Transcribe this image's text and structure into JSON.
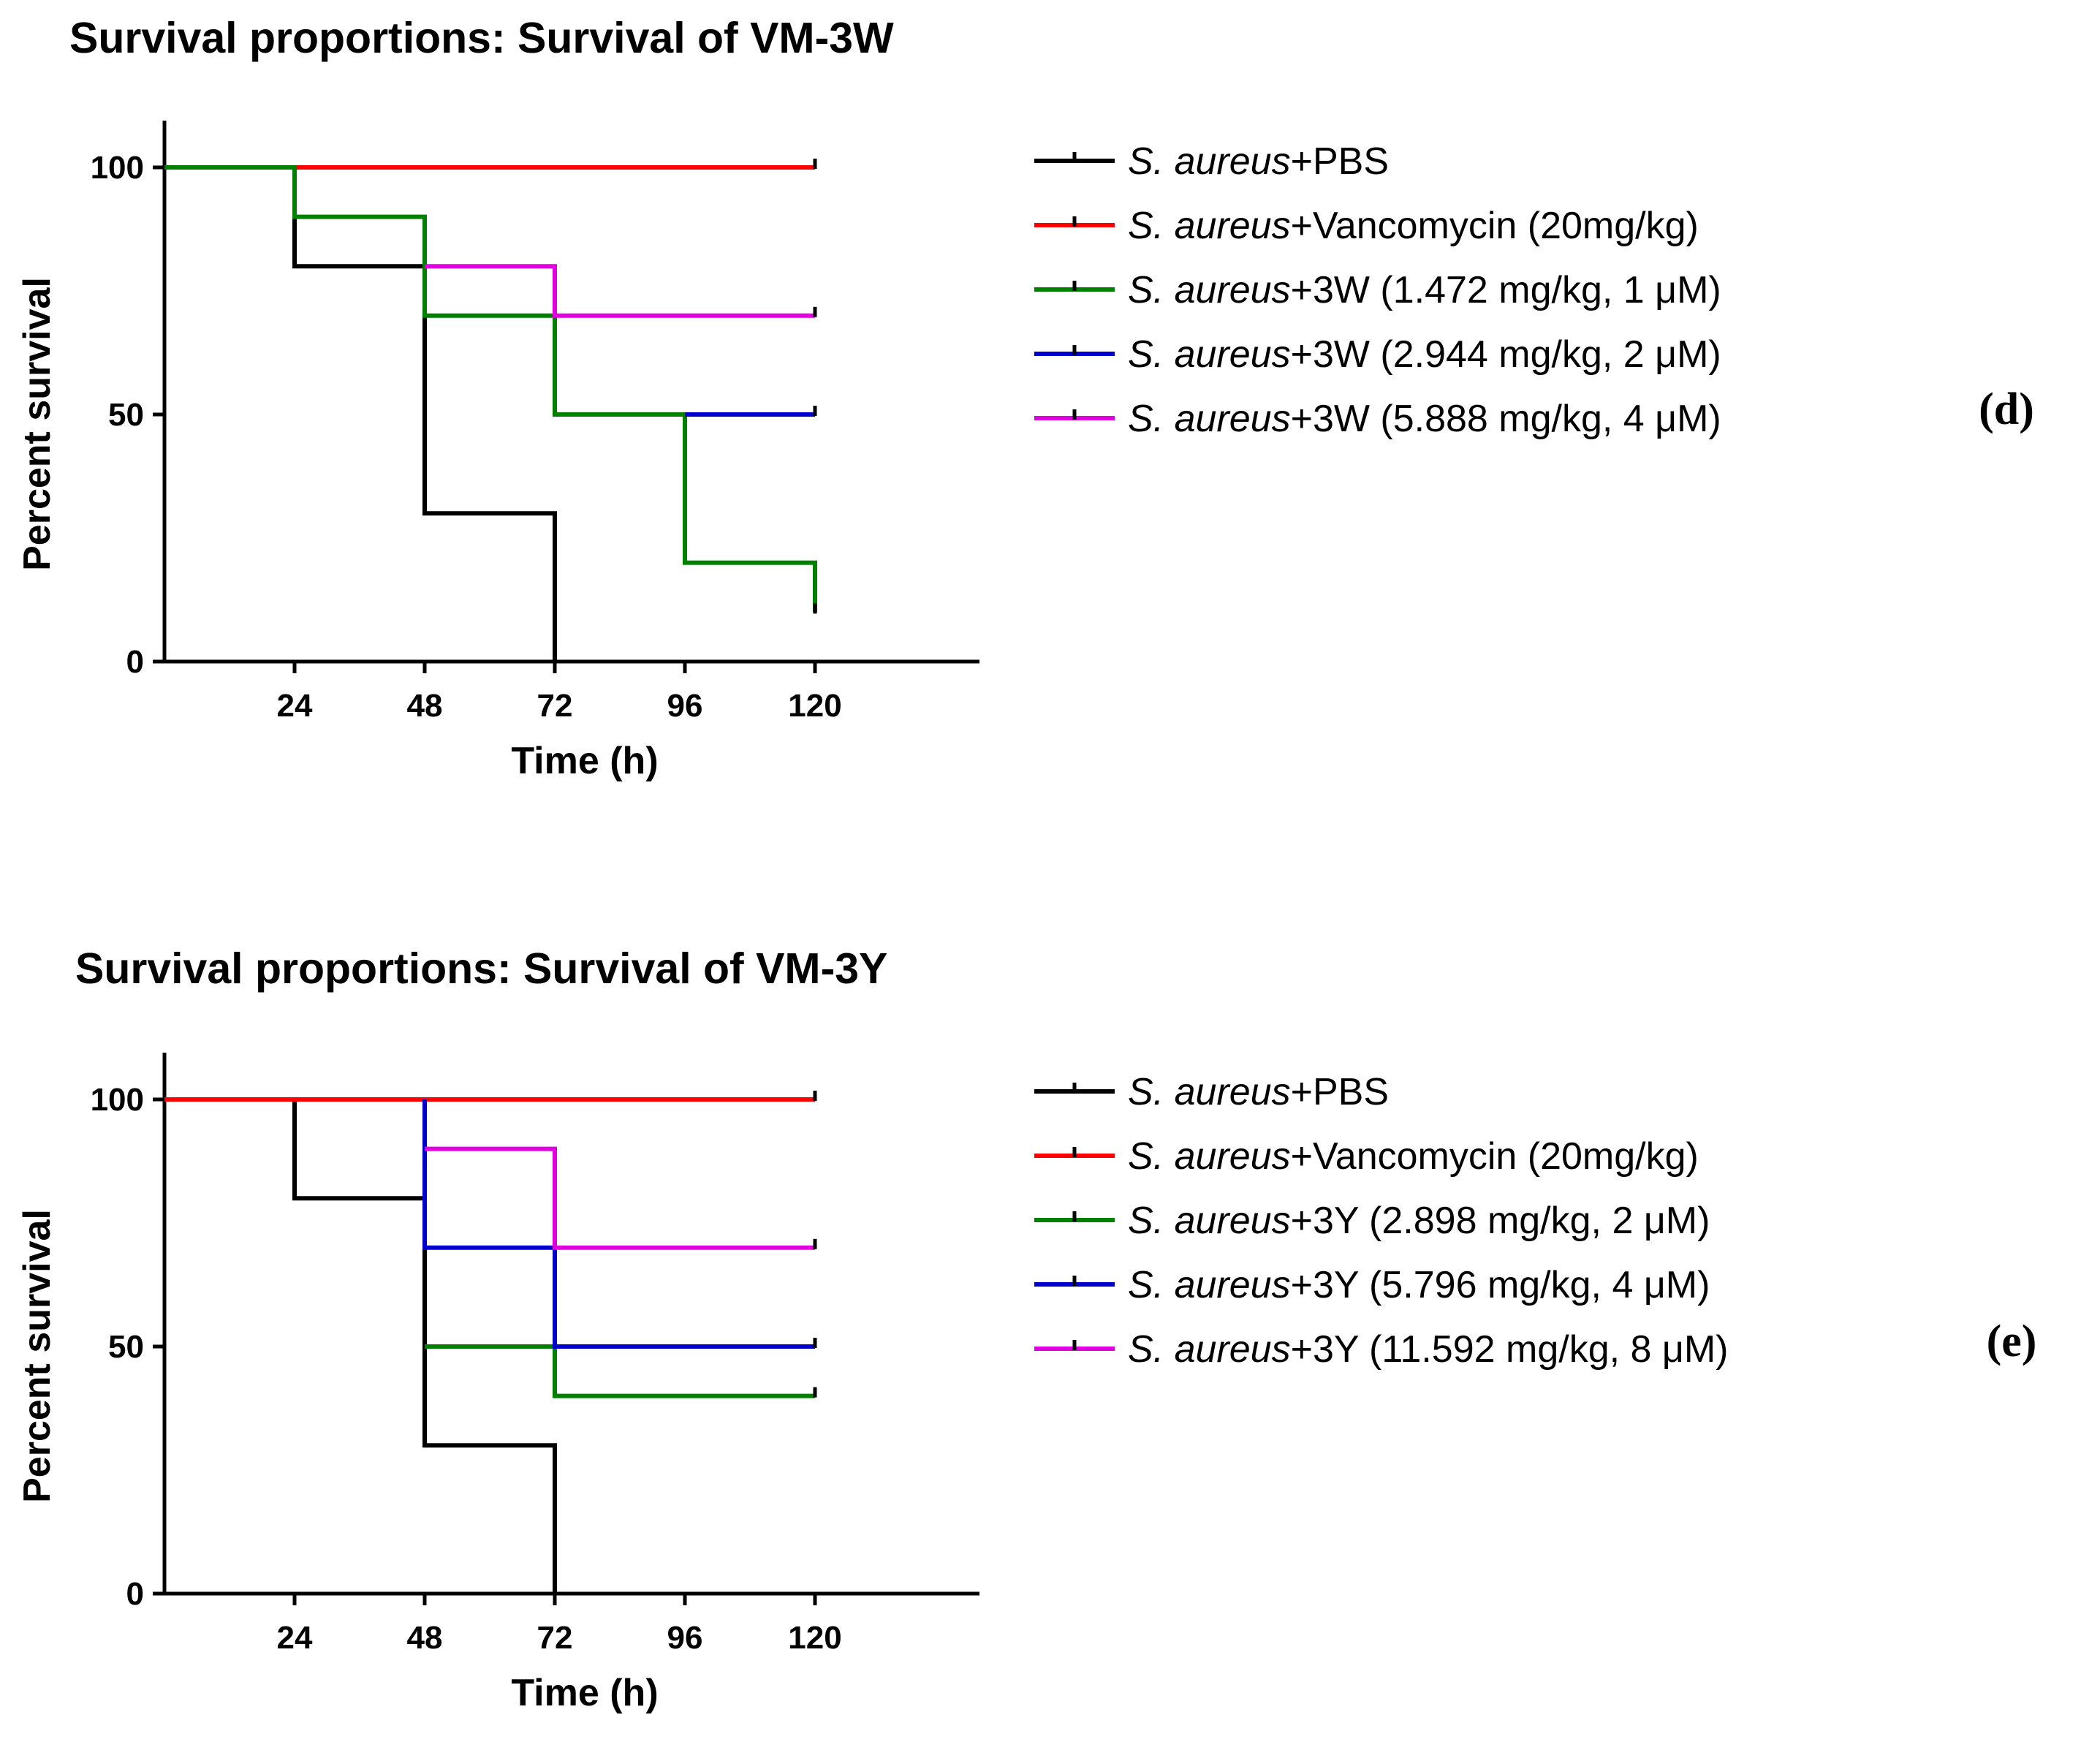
{
  "chart_data": [
    {
      "type": "line",
      "title": "Survival proportions: Survival of VM-3W",
      "xlabel": "Time (h)",
      "ylabel": "Percent survival",
      "x_ticks": [
        24,
        48,
        72,
        96,
        120
      ],
      "y_ticks": [
        0,
        50,
        100
      ],
      "xlim": [
        0,
        150
      ],
      "ylim": [
        0,
        110
      ],
      "legend_placement": "right",
      "panel_label": "(d)",
      "series": [
        {
          "name_italic": "S. aureus",
          "name_rest": "+PBS",
          "color": "#000000",
          "points": [
            [
              0,
              100
            ],
            [
              24,
              100
            ],
            [
              24,
              80
            ],
            [
              48,
              80
            ],
            [
              48,
              30
            ],
            [
              72,
              30
            ],
            [
              72,
              0
            ]
          ]
        },
        {
          "name_italic": "S. aureus",
          "name_rest": "+Vancomycin (20mg/kg)",
          "color": "#ff0000",
          "points": [
            [
              0,
              100
            ],
            [
              120,
              100
            ]
          ]
        },
        {
          "name_italic": "S. aureus",
          "name_rest": "+3W (1.472 mg/kg, 1 μM)",
          "color": "#008000",
          "points": [
            [
              0,
              100
            ],
            [
              24,
              100
            ],
            [
              24,
              90
            ],
            [
              48,
              90
            ],
            [
              48,
              70
            ],
            [
              72,
              70
            ],
            [
              72,
              50
            ],
            [
              96,
              50
            ],
            [
              96,
              20
            ],
            [
              120,
              20
            ],
            [
              120,
              10
            ]
          ]
        },
        {
          "name_italic": "S. aureus",
          "name_rest": "+3W (2.944 mg/kg, 2 μM)",
          "color": "#0000cc",
          "points": [
            [
              96,
              50
            ],
            [
              120,
              50
            ]
          ]
        },
        {
          "name_italic": "S. aureus",
          "name_rest": "+3W (5.888 mg/kg, 4 μM)",
          "color": "#e000e0",
          "points": [
            [
              48,
              80
            ],
            [
              72,
              80
            ],
            [
              72,
              70
            ],
            [
              120,
              70
            ]
          ]
        }
      ]
    },
    {
      "type": "line",
      "title": "Survival proportions: Survival of VM-3Y",
      "xlabel": "Time (h)",
      "ylabel": "Percent survival",
      "x_ticks": [
        24,
        48,
        72,
        96,
        120
      ],
      "y_ticks": [
        0,
        50,
        100
      ],
      "xlim": [
        0,
        150
      ],
      "ylim": [
        0,
        110
      ],
      "legend_placement": "right",
      "panel_label": "(e)",
      "series": [
        {
          "name_italic": "S. aureus",
          "name_rest": "+PBS",
          "color": "#000000",
          "points": [
            [
              0,
              100
            ],
            [
              24,
              100
            ],
            [
              24,
              80
            ],
            [
              48,
              80
            ],
            [
              48,
              30
            ],
            [
              72,
              30
            ],
            [
              72,
              0
            ]
          ]
        },
        {
          "name_italic": "S. aureus",
          "name_rest": "+Vancomycin (20mg/kg)",
          "color": "#ff0000",
          "points": [
            [
              0,
              100
            ],
            [
              120,
              100
            ]
          ]
        },
        {
          "name_italic": "S. aureus",
          "name_rest": "+3Y (2.898 mg/kg, 2 μM)",
          "color": "#008000",
          "points": [
            [
              48,
              50
            ],
            [
              72,
              50
            ],
            [
              72,
              40
            ],
            [
              120,
              40
            ]
          ]
        },
        {
          "name_italic": "S. aureus",
          "name_rest": "+3Y (5.796 mg/kg, 4 μM)",
          "color": "#0000cc",
          "points": [
            [
              48,
              100
            ],
            [
              48,
              70
            ],
            [
              72,
              70
            ],
            [
              72,
              50
            ],
            [
              120,
              50
            ]
          ]
        },
        {
          "name_italic": "S. aureus",
          "name_rest": "+3Y (11.592 mg/kg, 8 μM)",
          "color": "#e000e0",
          "points": [
            [
              48,
              90
            ],
            [
              72,
              90
            ],
            [
              72,
              70
            ],
            [
              120,
              70
            ]
          ]
        }
      ]
    }
  ]
}
